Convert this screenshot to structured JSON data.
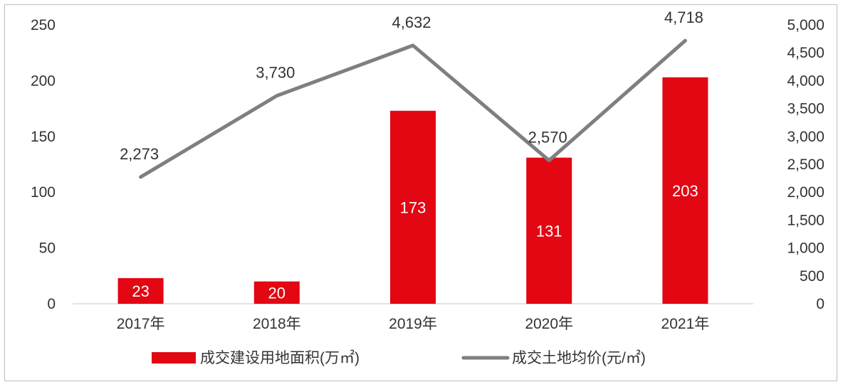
{
  "chart_data": {
    "type": "bar",
    "categories": [
      "2017年",
      "2018年",
      "2019年",
      "2020年",
      "2021年"
    ],
    "series": [
      {
        "name": "成交建设用地面积(万㎡)",
        "type": "bar",
        "axis": "left",
        "color": "#e30613",
        "values": [
          23,
          20,
          173,
          131,
          203
        ],
        "labels": [
          "23",
          "20",
          "173",
          "131",
          "203"
        ]
      },
      {
        "name": "成交土地均价(元/㎡)",
        "type": "line",
        "axis": "right",
        "color": "#7f7f7f",
        "values": [
          2273,
          3730,
          4632,
          2570,
          4718
        ],
        "labels": [
          "2,273",
          "3,730",
          "4,632",
          "2,570",
          "4,718"
        ]
      }
    ],
    "y_left": {
      "min": 0,
      "max": 250,
      "ticks": [
        "0",
        "50",
        "100",
        "150",
        "200",
        "250"
      ]
    },
    "y_right": {
      "min": 0,
      "max": 5000,
      "ticks": [
        "0",
        "500",
        "1,000",
        "1,500",
        "2,000",
        "2,500",
        "3,000",
        "3,500",
        "4,000",
        "4,500",
        "5,000"
      ]
    },
    "grid": false,
    "legend": "bottom"
  }
}
